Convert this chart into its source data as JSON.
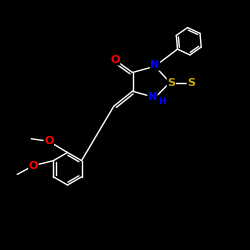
{
  "bg_color": "#000000",
  "bond_color": "#ffffff",
  "atom_colors": {
    "O": "#ff0000",
    "N": "#0000ff",
    "S": "#ccaa00",
    "H": "#0000ff",
    "C": "#ffffff"
  },
  "font_size_atom": 8,
  "font_size_small": 6.5,
  "lw": 1.0
}
